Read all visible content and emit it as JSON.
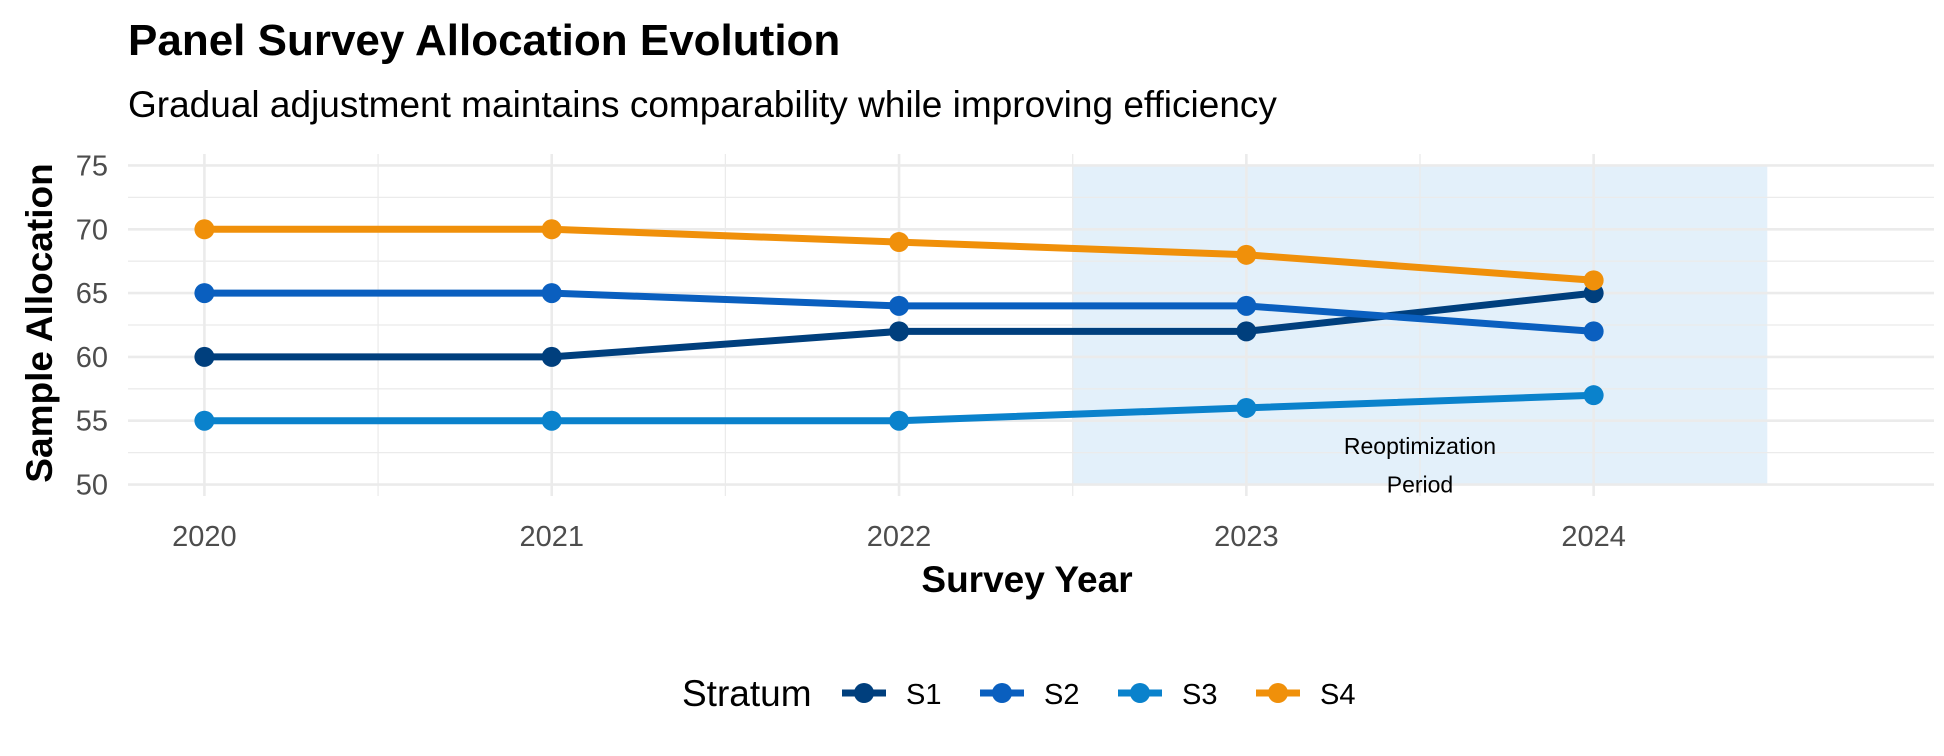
{
  "chart_data": {
    "type": "line",
    "title": "Panel Survey Allocation Evolution",
    "subtitle": "Gradual adjustment maintains comparability while improving efficiency",
    "xlabel": "Survey Year",
    "ylabel": "Sample Allocation",
    "x": [
      2020,
      2021,
      2022,
      2023,
      2024
    ],
    "xlim": [
      2019.78,
      2024.98
    ],
    "ylim": [
      49.1,
      75.9
    ],
    "y_ticks": [
      50,
      55,
      60,
      65,
      70,
      75
    ],
    "grid": true,
    "legend": {
      "title": "Stratum",
      "position": "bottom"
    },
    "series": [
      {
        "name": "S1",
        "color": "#003f7d",
        "values": [
          60,
          60,
          62,
          62,
          65
        ]
      },
      {
        "name": "S2",
        "color": "#0a5fbf",
        "values": [
          65,
          65,
          64,
          64,
          62
        ]
      },
      {
        "name": "S3",
        "color": "#0a82cc",
        "values": [
          55,
          55,
          55,
          56,
          57
        ]
      },
      {
        "name": "S4",
        "color": "#f0900a",
        "values": [
          70,
          70,
          69,
          68,
          66
        ]
      }
    ],
    "highlight_region": {
      "x_range": [
        2022.5,
        2024.5
      ],
      "y_range": [
        50,
        75
      ],
      "color": "#cce3f5",
      "label_lines": [
        "Reoptimization",
        "Period"
      ],
      "label_x": 2023.5,
      "label_y": [
        53,
        50
      ]
    }
  }
}
